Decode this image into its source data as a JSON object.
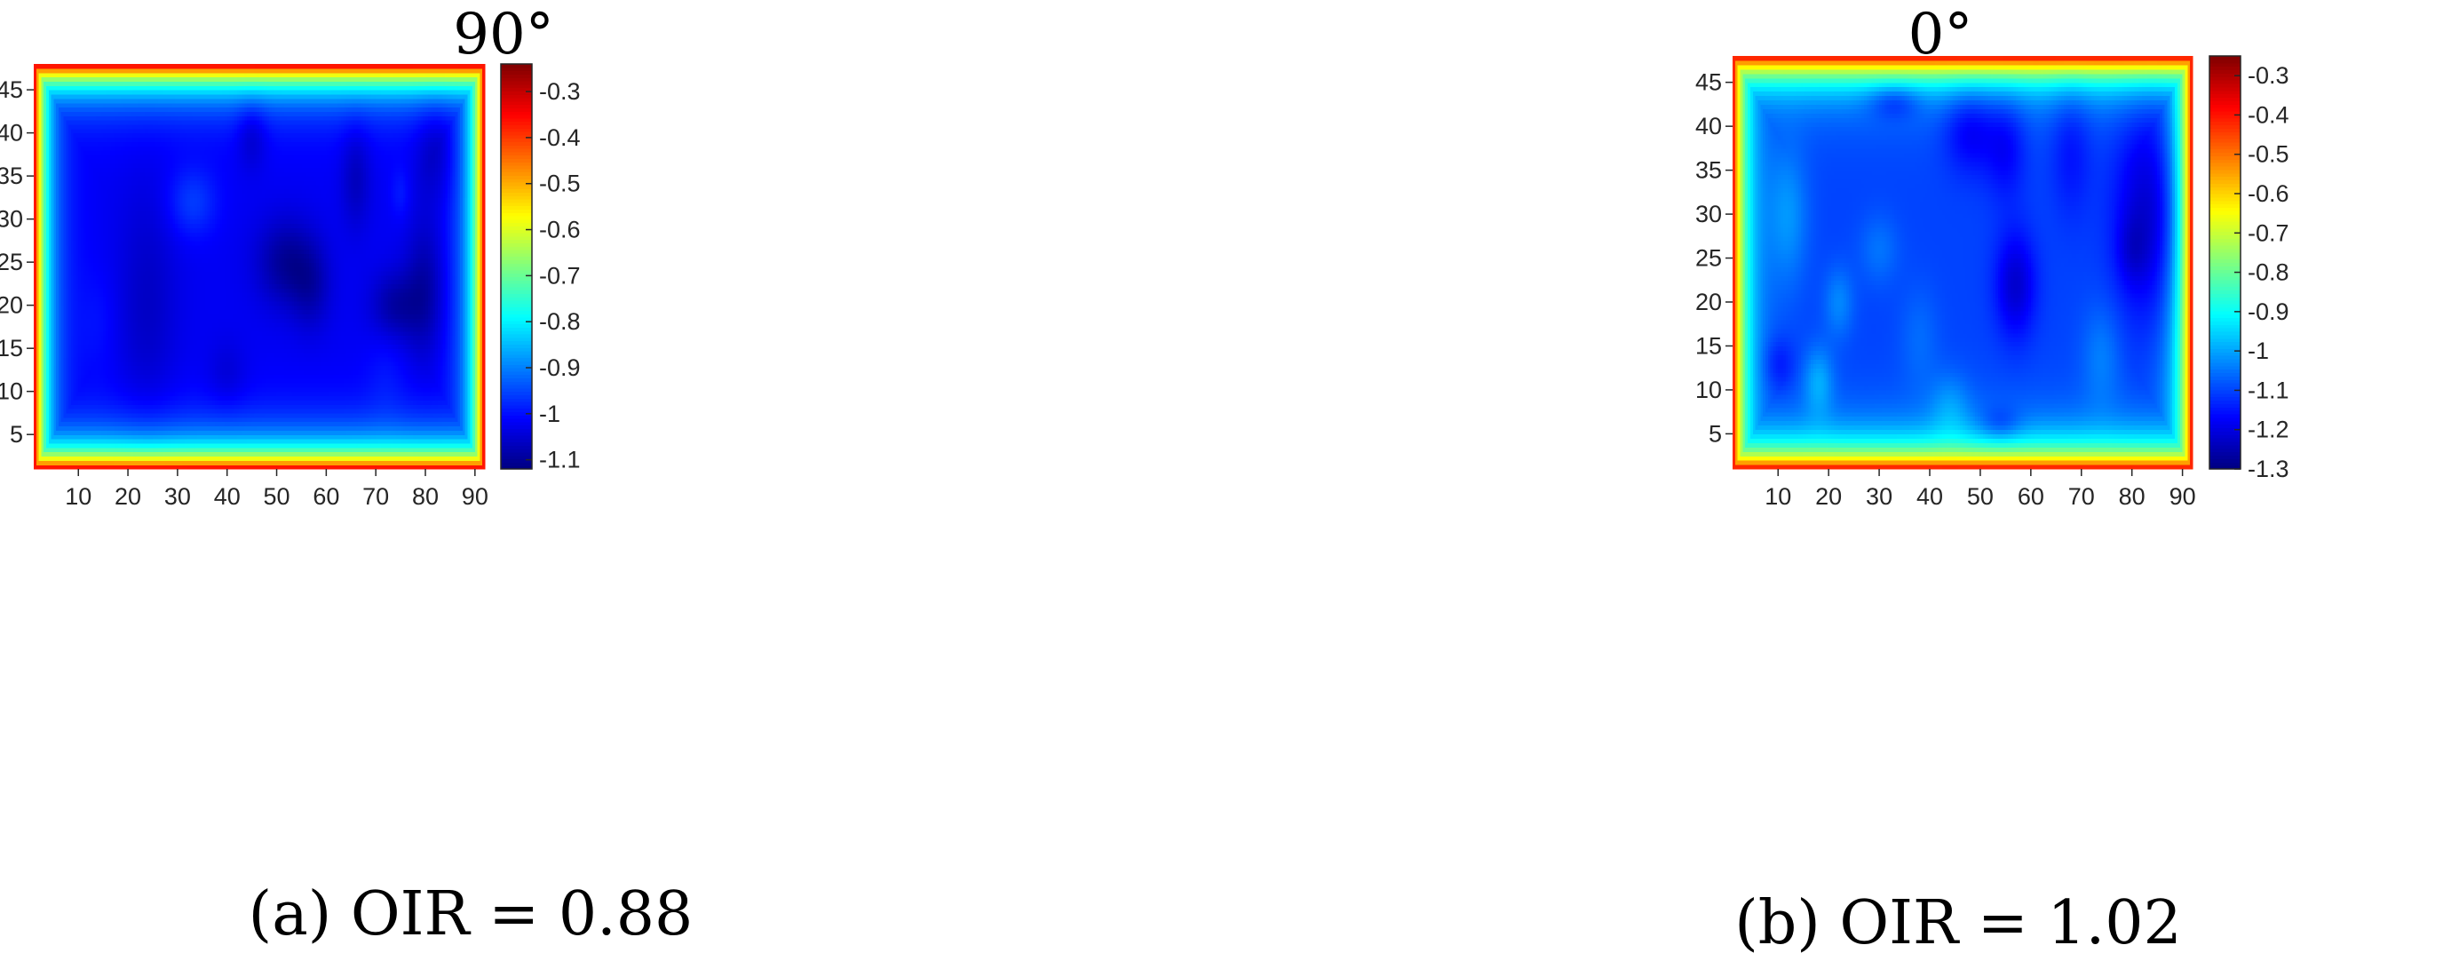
{
  "figure": {
    "panels": [
      {
        "id": "a",
        "title": "90°",
        "caption": "(a) OIR = 0.88"
      },
      {
        "id": "b",
        "title": "0°",
        "caption": "(b) OIR = 1.02"
      }
    ]
  },
  "colormap": {
    "name": "jet",
    "stops": [
      "#00007f",
      "#0000ff",
      "#007fff",
      "#00ffff",
      "#7fff7f",
      "#ffff00",
      "#ff7f00",
      "#ff0000",
      "#7f0000"
    ]
  },
  "chart_data": [
    {
      "type": "heatmap",
      "title": "90°",
      "caption": "(a) OIR = 0.88",
      "xlabel": "",
      "ylabel": "",
      "xlim": [
        1,
        92
      ],
      "ylim": [
        1,
        48
      ],
      "xticks": [
        10,
        20,
        30,
        40,
        50,
        60,
        70,
        80,
        90
      ],
      "yticks": [
        5,
        10,
        15,
        20,
        25,
        30,
        35,
        40,
        45
      ],
      "colorbar": {
        "range": [
          -1.12,
          -0.24
        ],
        "ticks": [
          -1.1,
          -1,
          -0.9,
          -0.8,
          -0.7,
          -0.6,
          -0.5,
          -0.4,
          -0.3
        ],
        "tick_labels": [
          "-1.1",
          "-1",
          "-0.9",
          "-0.8",
          "-0.7",
          "-0.6",
          "-0.5",
          "-0.4",
          "-0.3"
        ]
      },
      "field": {
        "interior_level": -1.02,
        "edge_level": -0.3,
        "edge_width": 2.5,
        "variations": [
          {
            "x": 24,
            "y": 20,
            "dx": 6,
            "dy": 14,
            "dv": -0.04
          },
          {
            "x": 33,
            "y": 32,
            "dx": 5,
            "dy": 4,
            "dv": 0.06
          },
          {
            "x": 45,
            "y": 40,
            "dx": 3,
            "dy": 4,
            "dv": -0.05
          },
          {
            "x": 52,
            "y": 25,
            "dx": 6,
            "dy": 5,
            "dv": -0.08
          },
          {
            "x": 57,
            "y": 22,
            "dx": 4,
            "dy": 5,
            "dv": -0.05
          },
          {
            "x": 66,
            "y": 35,
            "dx": 3,
            "dy": 6,
            "dv": -0.05
          },
          {
            "x": 74,
            "y": 20,
            "dx": 5,
            "dy": 4,
            "dv": -0.07
          },
          {
            "x": 80,
            "y": 22,
            "dx": 4,
            "dy": 8,
            "dv": -0.07
          },
          {
            "x": 82,
            "y": 38,
            "dx": 4,
            "dy": 6,
            "dv": -0.05
          },
          {
            "x": 75,
            "y": 33,
            "dx": 2,
            "dy": 3,
            "dv": 0.03
          },
          {
            "x": 14,
            "y": 18,
            "dx": 4,
            "dy": 6,
            "dv": 0.02
          },
          {
            "x": 40,
            "y": 12,
            "dx": 4,
            "dy": 4,
            "dv": -0.03
          },
          {
            "x": 72,
            "y": 12,
            "dx": 4,
            "dy": 6,
            "dv": 0.02
          }
        ]
      }
    },
    {
      "type": "heatmap",
      "title": "0°",
      "caption": "(b) OIR = 1.02",
      "xlabel": "",
      "ylabel": "",
      "xlim": [
        1,
        92
      ],
      "ylim": [
        1,
        48
      ],
      "xticks": [
        10,
        20,
        30,
        40,
        50,
        60,
        70,
        80,
        90
      ],
      "yticks": [
        5,
        10,
        15,
        20,
        25,
        30,
        35,
        40,
        45
      ],
      "colorbar": {
        "range": [
          -1.3,
          -0.25
        ],
        "ticks": [
          -1.3,
          -1.2,
          -1.1,
          -1,
          -0.9,
          -0.8,
          -0.7,
          -0.6,
          -0.5,
          -0.4,
          -0.3
        ],
        "tick_labels": [
          "-1.3",
          "-1.2",
          "-1.1",
          "-1",
          "-0.9",
          "-0.8",
          "-0.7",
          "-0.6",
          "-0.5",
          "-0.4",
          "-0.3"
        ]
      },
      "field": {
        "interior_level": -1.1,
        "edge_level": -0.35,
        "edge_width": 2.5,
        "variations": [
          {
            "x": 12,
            "y": 30,
            "dx": 4,
            "dy": 8,
            "dv": 0.08
          },
          {
            "x": 10,
            "y": 13,
            "dx": 3,
            "dy": 3,
            "dv": -0.06
          },
          {
            "x": 18,
            "y": 11,
            "dx": 3,
            "dy": 4,
            "dv": 0.1
          },
          {
            "x": 22,
            "y": 20,
            "dx": 3,
            "dy": 4,
            "dv": 0.07
          },
          {
            "x": 33,
            "y": 43,
            "dx": 5,
            "dy": 2,
            "dv": -0.1
          },
          {
            "x": 30,
            "y": 26,
            "dx": 4,
            "dy": 4,
            "dv": 0.05
          },
          {
            "x": 48,
            "y": 40,
            "dx": 5,
            "dy": 5,
            "dv": -0.1
          },
          {
            "x": 57,
            "y": 22,
            "dx": 4,
            "dy": 6,
            "dv": -0.12
          },
          {
            "x": 55,
            "y": 38,
            "dx": 4,
            "dy": 6,
            "dv": -0.08
          },
          {
            "x": 54,
            "y": 6,
            "dx": 4,
            "dy": 2,
            "dv": -0.08
          },
          {
            "x": 68,
            "y": 38,
            "dx": 4,
            "dy": 8,
            "dv": -0.06
          },
          {
            "x": 84,
            "y": 30,
            "dx": 7,
            "dy": 12,
            "dv": -0.14
          },
          {
            "x": 44,
            "y": 8,
            "dx": 4,
            "dy": 4,
            "dv": 0.07
          },
          {
            "x": 74,
            "y": 14,
            "dx": 4,
            "dy": 6,
            "dv": 0.06
          },
          {
            "x": 80,
            "y": 26,
            "dx": 3,
            "dy": 4,
            "dv": -0.05
          },
          {
            "x": 38,
            "y": 16,
            "dx": 4,
            "dy": 6,
            "dv": 0.04
          }
        ]
      }
    }
  ]
}
